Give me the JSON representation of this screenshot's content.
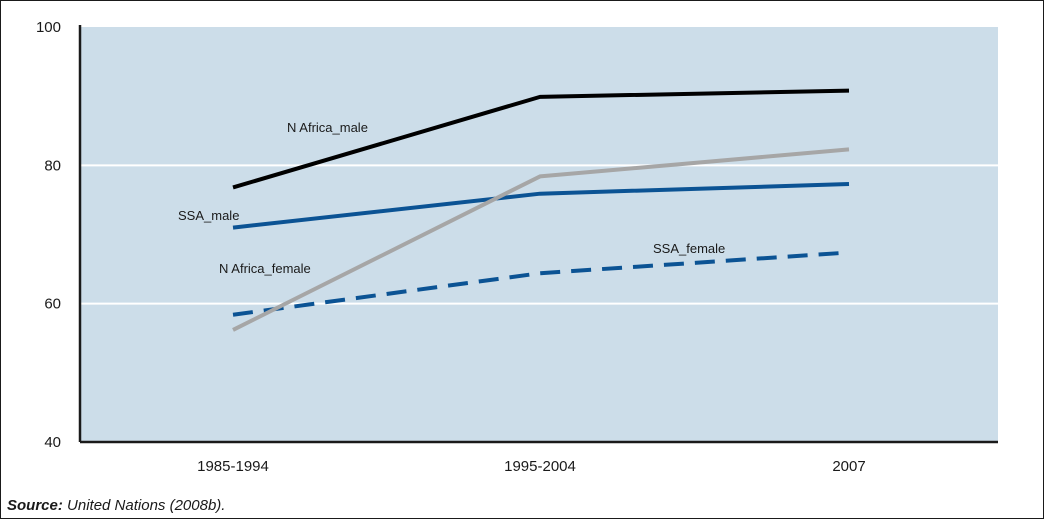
{
  "chart_data": {
    "type": "line",
    "title": "",
    "xlabel": "",
    "ylabel": "",
    "categories": [
      "1985-1994",
      "1995-2004",
      "2007"
    ],
    "ylim": [
      40,
      100
    ],
    "yticks": [
      40,
      60,
      80,
      100
    ],
    "grid": "horizontal",
    "series": [
      {
        "name": "N Africa_male",
        "values": [
          76.8,
          89.9,
          90.8
        ],
        "color": "#000000",
        "dash": "solid"
      },
      {
        "name": "SSA_male",
        "values": [
          71.0,
          75.9,
          77.3
        ],
        "color": "#0b5394",
        "dash": "solid"
      },
      {
        "name": "N Africa_female",
        "values": [
          56.2,
          78.4,
          82.3
        ],
        "color": "#a6a6a6",
        "dash": "solid"
      },
      {
        "name": "SSA_female",
        "values": [
          58.4,
          64.4,
          67.4
        ],
        "color": "#0b5394",
        "dash": "dashed"
      }
    ],
    "plot_background": "#ccdde9"
  },
  "source": {
    "label": "Source:",
    "text": "United Nations (2008b)."
  }
}
